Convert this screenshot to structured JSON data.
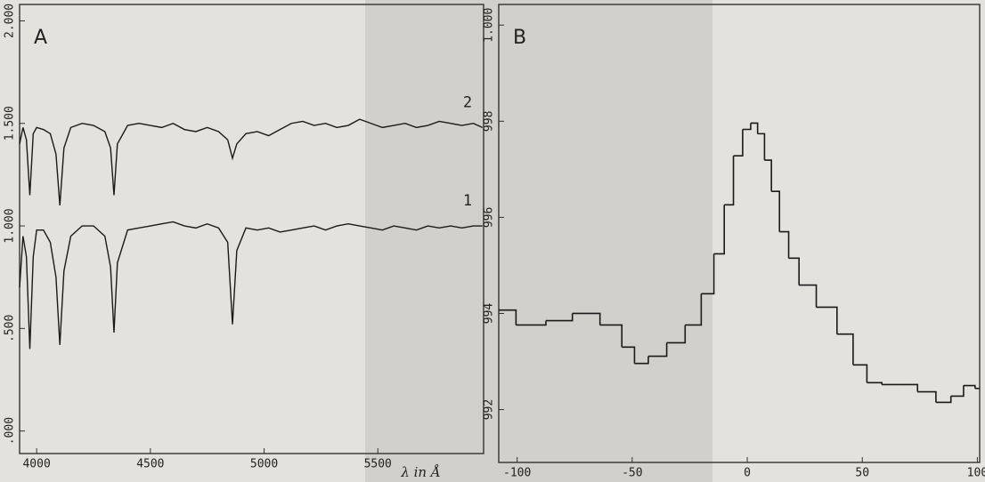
{
  "chart_data": [
    {
      "type": "line",
      "title": "A",
      "x_label": "λ in Å",
      "x": [
        3925,
        3940,
        3955,
        3970,
        3985,
        4000,
        4030,
        4060,
        4085,
        4102,
        4120,
        4150,
        4200,
        4250,
        4300,
        4325,
        4340,
        4355,
        4400,
        4450,
        4500,
        4550,
        4600,
        4650,
        4700,
        4750,
        4800,
        4840,
        4861,
        4880,
        4920,
        4970,
        5020,
        5070,
        5120,
        5170,
        5220,
        5270,
        5320,
        5370,
        5420,
        5470,
        5520,
        5570,
        5620,
        5670,
        5720,
        5770,
        5820,
        5870,
        5920,
        5960
      ],
      "series": [
        {
          "name": "1",
          "color": "#1a1a1a",
          "values": [
            0.7,
            0.95,
            0.85,
            0.4,
            0.85,
            0.98,
            0.98,
            0.92,
            0.75,
            0.42,
            0.78,
            0.95,
            1.0,
            1.0,
            0.95,
            0.8,
            0.48,
            0.82,
            0.98,
            0.99,
            1.0,
            1.01,
            1.02,
            1.0,
            0.99,
            1.01,
            0.99,
            0.92,
            0.52,
            0.88,
            0.99,
            0.98,
            0.99,
            0.97,
            0.98,
            0.99,
            1.0,
            0.98,
            1.0,
            1.01,
            1.0,
            0.99,
            0.98,
            1.0,
            0.99,
            0.98,
            1.0,
            0.99,
            1.0,
            0.99,
            1.0,
            1.0
          ]
        },
        {
          "name": "2",
          "color": "#1a1a1a",
          "values": [
            1.4,
            1.48,
            1.42,
            1.15,
            1.45,
            1.48,
            1.47,
            1.45,
            1.35,
            1.1,
            1.38,
            1.48,
            1.5,
            1.49,
            1.46,
            1.38,
            1.15,
            1.4,
            1.49,
            1.5,
            1.49,
            1.48,
            1.5,
            1.47,
            1.46,
            1.48,
            1.46,
            1.42,
            1.33,
            1.4,
            1.45,
            1.46,
            1.44,
            1.47,
            1.5,
            1.51,
            1.49,
            1.5,
            1.48,
            1.49,
            1.52,
            1.5,
            1.48,
            1.49,
            1.5,
            1.48,
            1.49,
            1.51,
            1.5,
            1.49,
            1.5,
            1.48
          ]
        }
      ],
      "xlim": [
        3925,
        5965
      ],
      "xticks": [
        4000,
        4500,
        5000,
        5500
      ],
      "ylim": [
        -0.11,
        2.08
      ],
      "yticks": [
        {
          "value": 0,
          "label": ".000"
        },
        {
          "value": 0.5,
          "label": ".500"
        },
        {
          "value": 1,
          "label": "1.000"
        },
        {
          "value": 1.5,
          "label": "1.500"
        },
        {
          "value": 2,
          "label": "2.000"
        }
      ]
    },
    {
      "type": "line",
      "title": "B",
      "drawstyle": "steps-mid",
      "x": [
        -108,
        -93,
        -82,
        -70,
        -58,
        -51,
        -47,
        -39,
        -31,
        -23,
        -17,
        -12,
        -8,
        -4,
        0,
        3,
        6,
        9,
        12,
        16,
        20,
        25,
        35,
        43,
        49,
        55,
        62,
        70,
        78,
        86,
        91,
        97,
        101
      ],
      "series": [
        {
          "color": "#1a1a1a",
          "values": [
            994.07,
            993.76,
            993.85,
            994.0,
            993.76,
            993.3,
            992.96,
            993.11,
            993.39,
            993.76,
            994.41,
            995.24,
            996.26,
            997.28,
            997.83,
            997.96,
            997.74,
            997.19,
            996.54,
            995.7,
            995.15,
            994.59,
            994.13,
            993.57,
            992.93,
            992.56,
            992.52,
            992.52,
            992.37,
            992.15,
            992.28,
            992.5,
            992.44
          ]
        }
      ],
      "xlim": [
        -108,
        101
      ],
      "xticks": [
        -100,
        -50,
        0,
        50,
        100
      ],
      "ylim": [
        990.9,
        1000.43
      ],
      "yticks": [
        992,
        994,
        996,
        998,
        {
          "value": 1000,
          "label": "1.000"
        }
      ]
    }
  ]
}
